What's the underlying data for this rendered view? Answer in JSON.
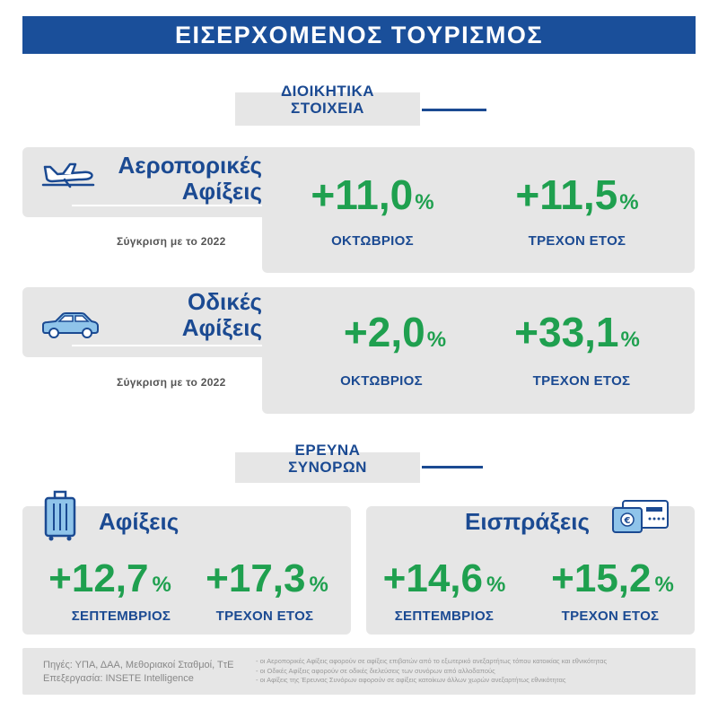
{
  "header": {
    "title": "ΕΙΣΕΡΧΟΜΕΝΟΣ ΤΟΥΡΙΣΜΟΣ"
  },
  "section_admin": {
    "line1": "ΔΙΟΙΚΗΤΙΚΑ",
    "line2": "ΣΤΟΙΧΕΙΑ"
  },
  "air": {
    "title_line1": "Αεροπορικές",
    "title_line2": "Αφίξεις",
    "compare": "Σύγκριση με το 2022",
    "month_value": "+11,0",
    "month_pct": "%",
    "month_label": "ΟΚΤΩΒΡΙΟΣ",
    "ytd_value": "+11,5",
    "ytd_pct": "%",
    "ytd_label": "ΤΡΕΧΟΝ ΕΤΟΣ",
    "icon": "airplane-icon"
  },
  "road": {
    "title_line1": "Οδικές",
    "title_line2": "Αφίξεις",
    "compare": "Σύγκριση με το 2022",
    "month_value": "+2,0",
    "month_pct": "%",
    "month_label": "ΟΚΤΩΒΡΙΟΣ",
    "ytd_value": "+33,1",
    "ytd_pct": "%",
    "ytd_label": "ΤΡΕΧΟΝ ΕΤΟΣ",
    "icon": "car-icon"
  },
  "section_border": {
    "line1": "ΕΡΕΥΝΑ",
    "line2": "ΣΥΝΟΡΩΝ"
  },
  "arrivals": {
    "title": "Αφίξεις",
    "month_value": "+12,7",
    "month_pct": "%",
    "month_label": "ΣΕΠΤΕΜΒΡΙΟΣ",
    "ytd_value": "+17,3",
    "ytd_pct": "%",
    "ytd_label": "ΤΡΕΧΟΝ ΕΤΟΣ",
    "icon": "suitcase-icon"
  },
  "receipts": {
    "title": "Εισπράξεις",
    "month_value": "+14,6",
    "month_pct": "%",
    "month_label": "ΣΕΠΤΕΜΒΡΙΟΣ",
    "ytd_value": "+15,2",
    "ytd_pct": "%",
    "ytd_label": "ΤΡΕΧΟΝ ΕΤΟΣ",
    "icon": "credit-card-icon"
  },
  "footer": {
    "sources": "Πηγές:  ΥΠΑ, ΔΑΑ, Μεθοριακοί Σταθμοί, ΤτΕ",
    "processing": "Επεξεργασία:  INSETE Intelligence",
    "notes": [
      "- οι Αεροπορικές Αφίξεις αφορούν σε αφίξεις επιβατών από το εξωτερικό ανεξαρτήτως τόπου κατοικίας και εθνικότητας",
      "- οι Οδικές Αφίξεις αφορούν σε οδικές διελεύσεις των συνόρων από αλλοδαπούς",
      "- οι Αφίξεις της Έρευνας Συνόρων αφορούν σε αφίξεις κατοίκων άλλων χωρών ανεξαρτήτως εθνικότητας"
    ]
  },
  "colors": {
    "accent_blue": "#1b4a92",
    "header_blue": "#1a4f9a",
    "green": "#1fa04f",
    "panel_gray": "#e6e6e6"
  }
}
